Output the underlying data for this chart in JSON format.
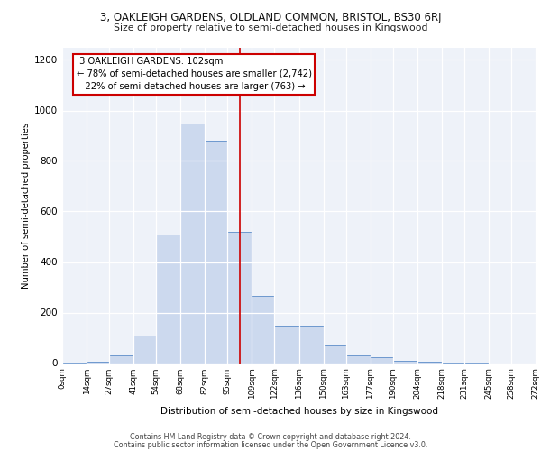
{
  "title_line1": "3, OAKLEIGH GARDENS, OLDLAND COMMON, BRISTOL, BS30 6RJ",
  "title_line2": "Size of property relative to semi-detached houses in Kingswood",
  "xlabel": "Distribution of semi-detached houses by size in Kingswood",
  "ylabel": "Number of semi-detached properties",
  "footer_line1": "Contains HM Land Registry data © Crown copyright and database right 2024.",
  "footer_line2": "Contains public sector information licensed under the Open Government Licence v3.0.",
  "property_label": "3 OAKLEIGH GARDENS: 102sqm",
  "pct_smaller": 78,
  "count_smaller": 2742,
  "pct_larger": 22,
  "count_larger": 763,
  "vline_x": 102,
  "bin_edges": [
    0,
    14,
    27,
    41,
    54,
    68,
    82,
    95,
    109,
    122,
    136,
    150,
    163,
    177,
    190,
    204,
    218,
    231,
    245,
    258,
    272
  ],
  "bin_labels": [
    "0sqm",
    "14sqm",
    "27sqm",
    "41sqm",
    "54sqm",
    "68sqm",
    "82sqm",
    "95sqm",
    "109sqm",
    "122sqm",
    "136sqm",
    "150sqm",
    "163sqm",
    "177sqm",
    "190sqm",
    "204sqm",
    "218sqm",
    "231sqm",
    "245sqm",
    "258sqm",
    "272sqm"
  ],
  "counts": [
    2,
    5,
    30,
    110,
    510,
    950,
    880,
    520,
    265,
    150,
    150,
    70,
    30,
    25,
    10,
    5,
    2,
    1,
    0,
    0
  ],
  "bar_color": "#ccd9ee",
  "bar_edge_color": "#5b8cc8",
  "vline_color": "#cc0000",
  "bg_color": "#eef2f9",
  "grid_color": "#ffffff",
  "annotation_box_facecolor": "#ffffff",
  "annotation_box_edge": "#cc0000",
  "ylim": [
    0,
    1250
  ],
  "yticks": [
    0,
    200,
    400,
    600,
    800,
    1000,
    1200
  ]
}
